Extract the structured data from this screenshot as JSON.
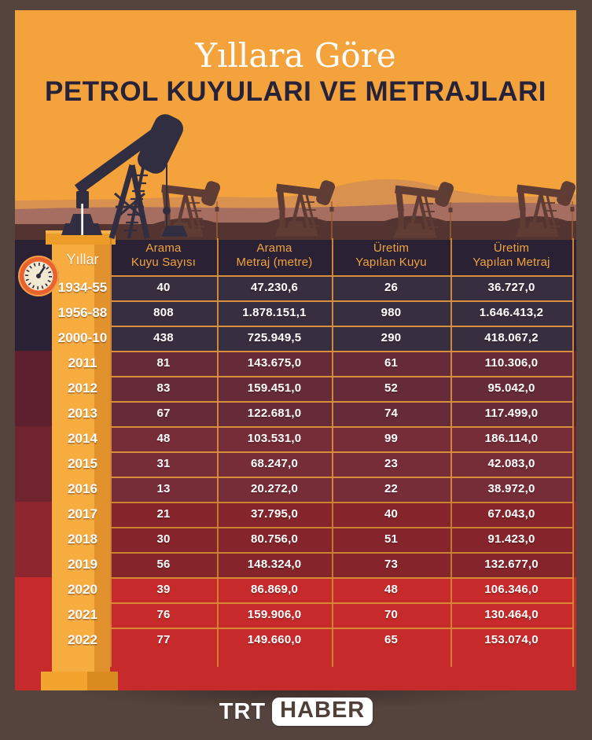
{
  "title": {
    "subtitle": "Yıllara Göre",
    "main": "PETROL KUYULARI VE METRAJLARI"
  },
  "table": {
    "year_column_header": "Yıllar",
    "column_headers": [
      {
        "line1": "Arama",
        "line2": "Kuyu Sayısı"
      },
      {
        "line1": "Arama",
        "line2": "Metraj (metre)"
      },
      {
        "line1": "Üretim",
        "line2": "Yapılan Kuyu"
      },
      {
        "line1": "Üretim",
        "line2": "Yapılan Metraj"
      }
    ],
    "rows": [
      {
        "year": "1934-55",
        "values": [
          "40",
          "47.230,6",
          "26",
          "36.727,0"
        ]
      },
      {
        "year": "1956-88",
        "values": [
          "808",
          "1.878.151,1",
          "980",
          "1.646.413,2"
        ]
      },
      {
        "year": "2000-10",
        "values": [
          "438",
          "725.949,5",
          "290",
          "418.067,2"
        ]
      },
      {
        "year": "2011",
        "values": [
          "81",
          "143.675,0",
          "61",
          "110.306,0"
        ]
      },
      {
        "year": "2012",
        "values": [
          "83",
          "159.451,0",
          "52",
          "95.042,0"
        ]
      },
      {
        "year": "2013",
        "values": [
          "67",
          "122.681,0",
          "74",
          "117.499,0"
        ]
      },
      {
        "year": "2014",
        "values": [
          "48",
          "103.531,0",
          "99",
          "186.114,0"
        ]
      },
      {
        "year": "2015",
        "values": [
          "31",
          "68.247,0",
          "23",
          "42.083,0"
        ]
      },
      {
        "year": "2016",
        "values": [
          "13",
          "20.272,0",
          "22",
          "38.972,0"
        ]
      },
      {
        "year": "2017",
        "values": [
          "21",
          "37.795,0",
          "40",
          "67.043,0"
        ]
      },
      {
        "year": "2018",
        "values": [
          "30",
          "80.756,0",
          "51",
          "91.423,0"
        ]
      },
      {
        "year": "2019",
        "values": [
          "56",
          "148.324,0",
          "73",
          "132.677,0"
        ]
      },
      {
        "year": "2020",
        "values": [
          "39",
          "86.869,0",
          "48",
          "106.346,0"
        ]
      },
      {
        "year": "2021",
        "values": [
          "76",
          "159.906,0",
          "70",
          "130.464,0"
        ]
      },
      {
        "year": "2022",
        "values": [
          "77",
          "149.660,0",
          "65",
          "153.074,0"
        ]
      }
    ]
  },
  "footer": {
    "trt": "TRT",
    "haber": "HABER"
  },
  "colors": {
    "sky_orange": "#F4A33C",
    "title_navy": "#26223A",
    "header_text_orange": "#F0A33D",
    "band_dark_plum": "#2B2134",
    "band_maroon_1": "#5E202E",
    "band_maroon_2": "#702430",
    "band_red_1": "#8D262E",
    "band_red_2": "#C62A2B",
    "grid_line_orange": "#CF8130",
    "derrick_yellow": "#F7AC3F",
    "frame_brown": "#55443E",
    "gauge_ring_orange": "#E8622D"
  },
  "chart_data": {
    "type": "table",
    "title": "Yıllara Göre Petrol Kuyuları ve Metrajları",
    "columns": [
      "Yıllar",
      "Arama Kuyu Sayısı",
      "Arama Metraj (metre)",
      "Üretim Yapılan Kuyu",
      "Üretim Yapılan Metraj"
    ],
    "rows": [
      [
        "1934-55",
        40,
        47230.6,
        26,
        36727.0
      ],
      [
        "1956-88",
        808,
        1878151.1,
        980,
        1646413.2
      ],
      [
        "2000-10",
        438,
        725949.5,
        290,
        418067.2
      ],
      [
        "2011",
        81,
        143675.0,
        61,
        110306.0
      ],
      [
        "2012",
        83,
        159451.0,
        52,
        95042.0
      ],
      [
        "2013",
        67,
        122681.0,
        74,
        117499.0
      ],
      [
        "2014",
        48,
        103531.0,
        99,
        186114.0
      ],
      [
        "2015",
        31,
        68247.0,
        23,
        42083.0
      ],
      [
        "2016",
        13,
        20272.0,
        22,
        38972.0
      ],
      [
        "2017",
        21,
        37795.0,
        40,
        67043.0
      ],
      [
        "2018",
        30,
        80756.0,
        51,
        91423.0
      ],
      [
        "2019",
        56,
        148324.0,
        73,
        132677.0
      ],
      [
        "2020",
        39,
        86869.0,
        48,
        106346.0
      ],
      [
        "2021",
        76,
        159906.0,
        70,
        130464.0
      ],
      [
        "2022",
        77,
        149660.0,
        65,
        153074.0
      ]
    ]
  }
}
